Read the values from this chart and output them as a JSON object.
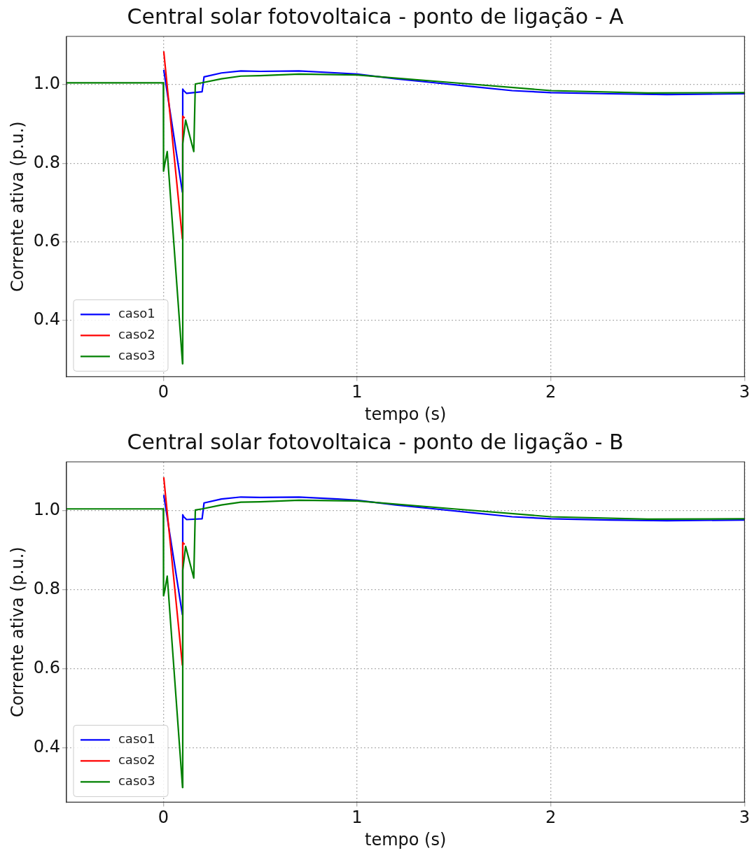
{
  "chart_data": [
    {
      "type": "line",
      "title": "Central solar fotovoltaica - ponto de ligação - A",
      "xlabel": "tempo (s)",
      "ylabel": "Corrente ativa (p.u.)",
      "xlim": [
        -0.5,
        3
      ],
      "xticks": [
        0,
        1,
        2,
        3
      ],
      "ylim": [
        0.257,
        1.123
      ],
      "yticks": [
        {
          "value": 0.4,
          "label": "0.4"
        },
        {
          "value": 0.6,
          "label": "0.6"
        },
        {
          "value": 0.8,
          "label": "0.8"
        },
        {
          "value": 1.0,
          "label": "1.0"
        }
      ],
      "grid": true,
      "legend": "bottom left",
      "line_style": "solid",
      "marker": "none",
      "series": [
        {
          "name": "caso1",
          "color": "#0000ff",
          "x": [
            0.002,
            0.098,
            0.1,
            0.105,
            0.12,
            0.2,
            0.21,
            0.3,
            0.4,
            0.5,
            0.7,
            0.9,
            1.0,
            1.2,
            1.4,
            1.6,
            1.8,
            2.0,
            2.3,
            2.6,
            3.0
          ],
          "values": [
            1.038,
            0.727,
            0.989,
            0.985,
            0.978,
            0.982,
            1.02,
            1.03,
            1.035,
            1.034,
            1.035,
            1.03,
            1.027,
            1.015,
            1.005,
            0.995,
            0.985,
            0.98,
            0.977,
            0.975,
            0.977
          ]
        },
        {
          "name": "caso2",
          "color": "#ff0000",
          "x": [
            0.002,
            0.098,
            0.1,
            0.11
          ],
          "values": [
            1.085,
            0.608,
            0.92,
            0.915
          ]
        },
        {
          "name": "caso3",
          "color": "#008000",
          "x": [
            -0.5,
            0,
            0.001,
            0.008,
            0.02,
            0.099,
            0.1,
            0.115,
            0.157,
            0.165,
            0.2,
            0.3,
            0.4,
            0.5,
            0.7,
            1.0,
            1.5,
            2.0,
            2.5,
            3.0
          ],
          "values": [
            1.005,
            1.005,
            0.78,
            0.8,
            0.83,
            0.29,
            0.85,
            0.91,
            0.83,
            1.002,
            1.005,
            1.015,
            1.022,
            1.023,
            1.027,
            1.025,
            1.005,
            0.985,
            0.979,
            0.98
          ]
        }
      ]
    },
    {
      "type": "line",
      "title": "Central solar fotovoltaica - ponto de ligação - B",
      "xlabel": "tempo (s)",
      "ylabel": "Corrente ativa (p.u.)",
      "xlim": [
        -0.5,
        3
      ],
      "xticks": [
        0,
        1,
        2,
        3
      ],
      "ylim": [
        0.263,
        1.124
      ],
      "yticks": [
        {
          "value": 0.4,
          "label": "0.4"
        },
        {
          "value": 0.6,
          "label": "0.6"
        },
        {
          "value": 0.8,
          "label": "0.8"
        },
        {
          "value": 1.0,
          "label": "1.0"
        }
      ],
      "grid": true,
      "legend": "bottom left",
      "line_style": "solid",
      "marker": "none",
      "series": [
        {
          "name": "caso1",
          "color": "#0000ff",
          "x": [
            0.002,
            0.098,
            0.1,
            0.105,
            0.12,
            0.2,
            0.21,
            0.3,
            0.4,
            0.5,
            0.7,
            0.9,
            1.0,
            1.2,
            1.4,
            1.6,
            1.8,
            2.0,
            2.3,
            2.6,
            3.0
          ],
          "values": [
            1.04,
            0.738,
            0.99,
            0.985,
            0.978,
            0.98,
            1.02,
            1.03,
            1.035,
            1.034,
            1.035,
            1.03,
            1.027,
            1.015,
            1.005,
            0.995,
            0.985,
            0.98,
            0.977,
            0.975,
            0.977
          ]
        },
        {
          "name": "caso2",
          "color": "#ff0000",
          "x": [
            0.002,
            0.098,
            0.1,
            0.11
          ],
          "values": [
            1.085,
            0.61,
            0.92,
            0.915
          ]
        },
        {
          "name": "caso3",
          "color": "#008000",
          "x": [
            -0.5,
            0,
            0.001,
            0.008,
            0.02,
            0.099,
            0.1,
            0.115,
            0.157,
            0.165,
            0.2,
            0.3,
            0.4,
            0.5,
            0.7,
            1.0,
            1.5,
            2.0,
            2.5,
            3.0
          ],
          "values": [
            1.005,
            1.005,
            0.785,
            0.8,
            0.835,
            0.3,
            0.85,
            0.91,
            0.83,
            1.002,
            1.005,
            1.015,
            1.022,
            1.023,
            1.027,
            1.025,
            1.005,
            0.985,
            0.979,
            0.98
          ]
        }
      ]
    }
  ]
}
